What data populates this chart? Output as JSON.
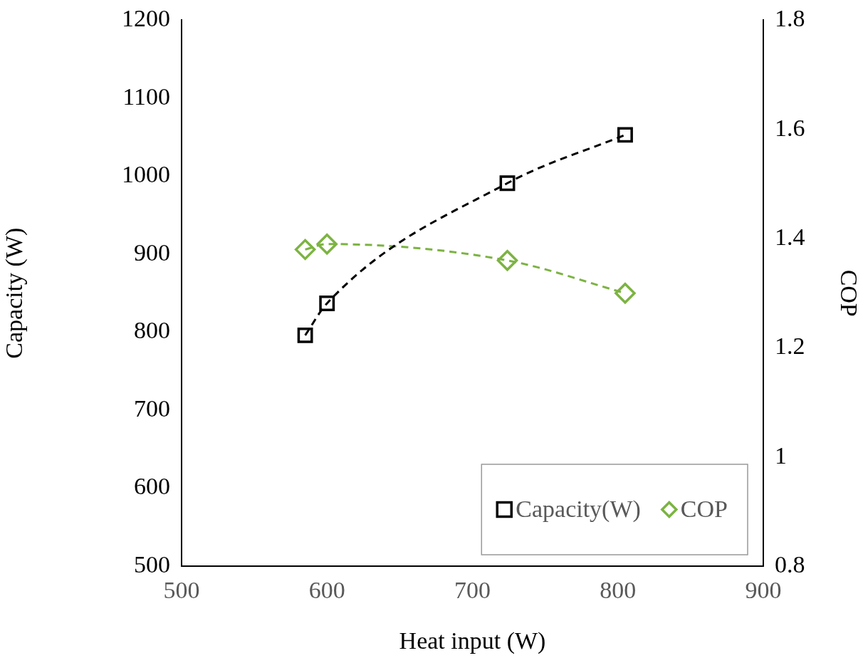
{
  "chart_data": {
    "type": "line",
    "xlabel": "Heat input (W)",
    "ylabel": "Capacity (W)",
    "y2label": "COP",
    "xlim": [
      500,
      900
    ],
    "xticks": [
      500,
      600,
      700,
      800,
      900
    ],
    "ylim": [
      500,
      1200
    ],
    "yticks": [
      500,
      600,
      700,
      800,
      900,
      1000,
      1100,
      1200
    ],
    "y2lim": [
      0.8,
      1.8
    ],
    "y2ticks": [
      {
        "value": 0.8,
        "label": "0.8"
      },
      1,
      1.2,
      1.4,
      1.6,
      1.8
    ],
    "grid": false,
    "legend": "bottom right",
    "line_style": "dashed",
    "series": [
      {
        "name": "Capacity(W)",
        "color": "#000000",
        "marker": "square",
        "x": [
          585,
          600,
          724,
          805
        ],
        "values": [
          796,
          837,
          991,
          1053
        ]
      },
      {
        "name": "COP",
        "color": "#7cb342",
        "marker": "diamond",
        "axis": "y2",
        "x": [
          585,
          600,
          724,
          805
        ],
        "values": [
          1.38,
          1.39,
          1.36,
          1.3
        ]
      }
    ]
  }
}
